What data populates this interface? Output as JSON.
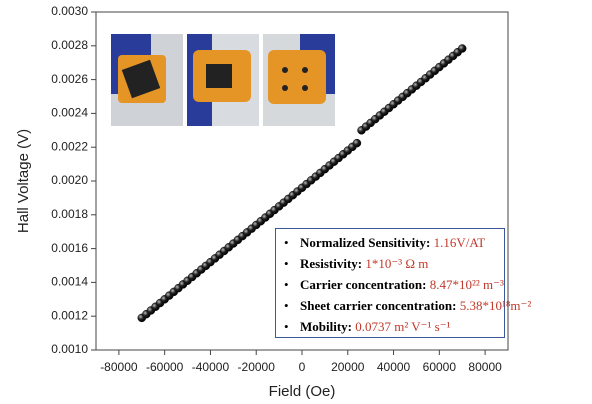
{
  "chart_data": {
    "type": "scatter",
    "xlabel": "Field (Oe)",
    "ylabel": "Hall Voltage (V)",
    "x": [
      -70000,
      -68000,
      -66000,
      -64000,
      -62000,
      -60000,
      -58000,
      -56000,
      -54000,
      -52000,
      -50000,
      -48000,
      -46000,
      -44000,
      -42000,
      -40000,
      -38000,
      -36000,
      -34000,
      -32000,
      -30000,
      -28000,
      -26000,
      -24000,
      -22000,
      -20000,
      -18000,
      -16000,
      -14000,
      -12000,
      -10000,
      -8000,
      -6000,
      -4000,
      -2000,
      0,
      2000,
      4000,
      6000,
      8000,
      10000,
      12000,
      14000,
      16000,
      18000,
      20000,
      22000,
      24000,
      26000,
      28000,
      30000,
      32000,
      34000,
      36000,
      38000,
      40000,
      42000,
      44000,
      46000,
      48000,
      50000,
      52000,
      54000,
      56000,
      58000,
      60000,
      62000,
      64000,
      66000,
      68000,
      70000
    ],
    "values": [
      0.00119,
      0.001212,
      0.001234,
      0.001256,
      0.001278,
      0.0013,
      0.001322,
      0.001344,
      0.001366,
      0.001388,
      0.00141,
      0.001432,
      0.001454,
      0.001476,
      0.001498,
      0.00152,
      0.001542,
      0.001564,
      0.001586,
      0.001608,
      0.00163,
      0.001652,
      0.001674,
      0.001696,
      0.001718,
      0.00174,
      0.001762,
      0.001784,
      0.001806,
      0.001828,
      0.00185,
      0.001872,
      0.001894,
      0.001916,
      0.001938,
      0.00196,
      0.001982,
      0.002004,
      0.002026,
      0.002048,
      0.00207,
      0.002092,
      0.002114,
      0.002136,
      0.002158,
      0.00218,
      0.002202,
      0.002224,
      0.0023,
      0.002322,
      0.002344,
      0.002366,
      0.002388,
      0.00241,
      0.002432,
      0.002454,
      0.002476,
      0.002498,
      0.00252,
      0.002542,
      0.002564,
      0.002586,
      0.002608,
      0.00263,
      0.002652,
      0.002674,
      0.002696,
      0.002718,
      0.00274,
      0.002762,
      0.002784
    ],
    "color": "#111111",
    "xlim": [
      -90000,
      90000
    ],
    "ylim": [
      0.001,
      0.003
    ],
    "xticks": [
      -80000,
      -60000,
      -40000,
      -20000,
      0,
      20000,
      40000,
      60000,
      80000
    ],
    "yticks": [
      {
        "value": 0.001,
        "label": "0.0010"
      },
      {
        "value": 0.0012,
        "label": "0.0012"
      },
      {
        "value": 0.0014,
        "label": "0.0014"
      },
      {
        "value": 0.0016,
        "label": "0.0016"
      },
      {
        "value": 0.0018,
        "label": "0.0018"
      },
      {
        "value": 0.002,
        "label": "0.0020"
      },
      {
        "value": 0.0022,
        "label": "0.0022"
      },
      {
        "value": 0.0024,
        "label": "0.0024"
      },
      {
        "value": 0.0026,
        "label": "0.0026"
      },
      {
        "value": 0.0028,
        "label": "0.0028"
      },
      {
        "value": 0.003,
        "label": "0.0030"
      }
    ],
    "annotations": [
      {
        "label": "Normalized Sensitivity:",
        "value": "1.16V/AT"
      },
      {
        "label": "Resistivity:",
        "value": "1*10⁻³ Ω m"
      },
      {
        "label": "Carrier concentration:",
        "value": "8.47*10²² m⁻³"
      },
      {
        "label": "Sheet carrier concentration:",
        "value": "5.38*10¹⁸m⁻²"
      },
      {
        "label": "Mobility:",
        "value": "0.0737 m² V⁻¹ s⁻¹"
      }
    ]
  }
}
